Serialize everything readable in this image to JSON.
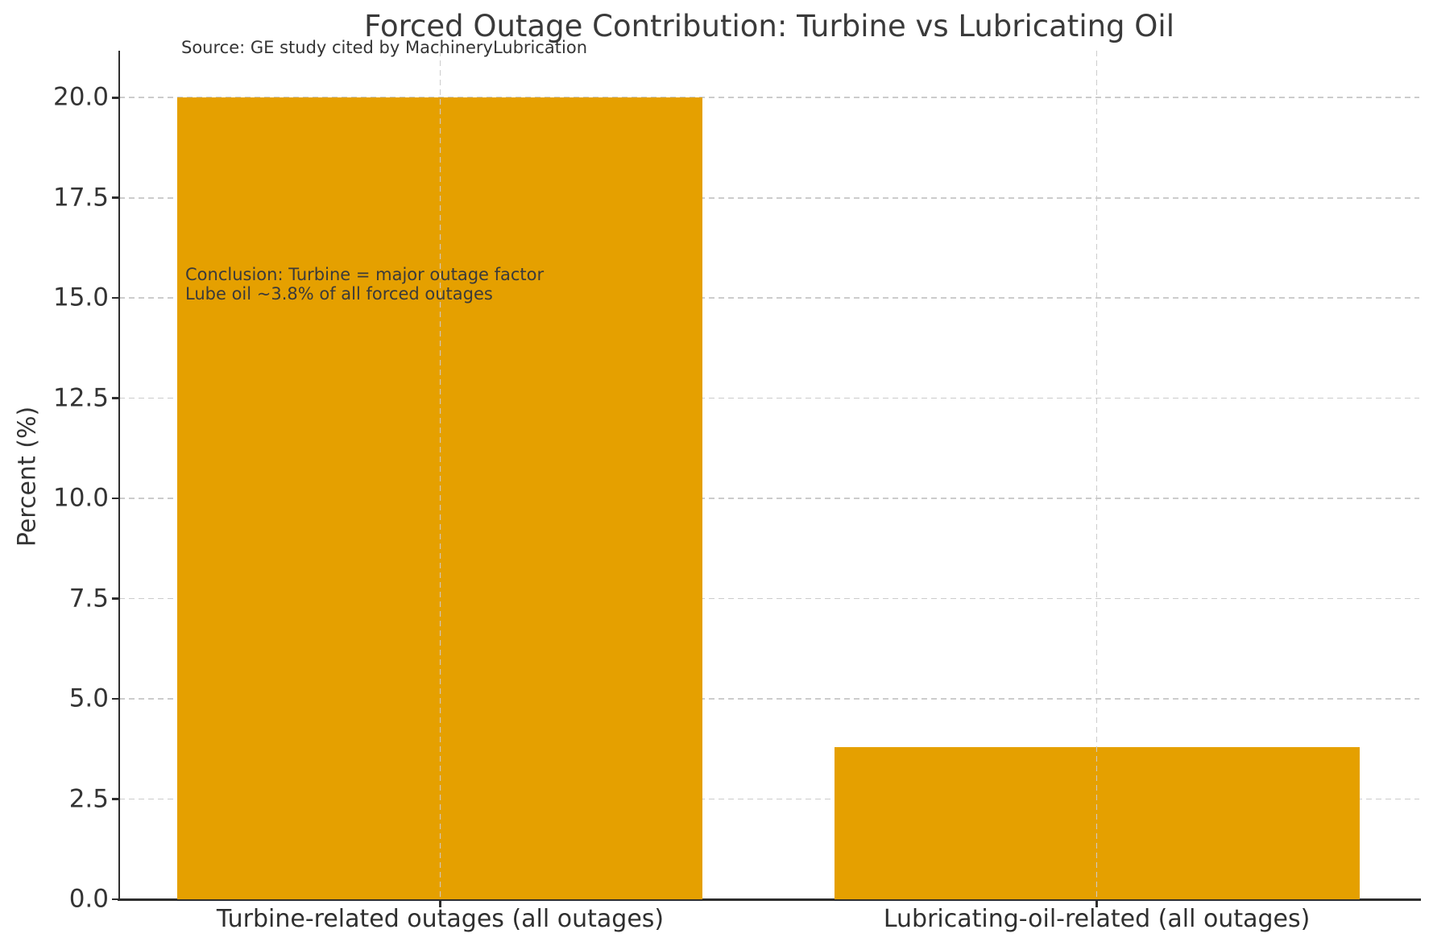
{
  "chart_data": {
    "type": "bar",
    "title": "Forced Outage Contribution: Turbine vs Lubricating Oil",
    "source_note": "Source: GE study cited by MachineryLubrication",
    "categories": [
      "Turbine-related outages (all outages)",
      "Lubricating-oil-related (all outages)"
    ],
    "values": [
      20.0,
      3.8
    ],
    "xlabel": "",
    "ylabel": "Percent (%)",
    "ylim": [
      0,
      21.17
    ],
    "yticks": [
      0.0,
      2.5,
      5.0,
      7.5,
      10.0,
      12.5,
      15.0,
      17.5,
      20.0
    ],
    "ytick_labels": [
      "0.0",
      "2.5",
      "5.0",
      "7.5",
      "10.0",
      "12.5",
      "15.0",
      "17.5",
      "20.0"
    ],
    "grid": "dashed, x and y, light gray",
    "legend_position": "none",
    "annotation_lines": [
      "Conclusion: Turbine = major outage factor",
      "Lube oil ~3.8% of all forced outages"
    ]
  },
  "colors": {
    "bar": "#e5a000",
    "grid": "#cccccc",
    "axis": "#2e2e2e",
    "text": "#343434",
    "background": "#ffffff"
  }
}
